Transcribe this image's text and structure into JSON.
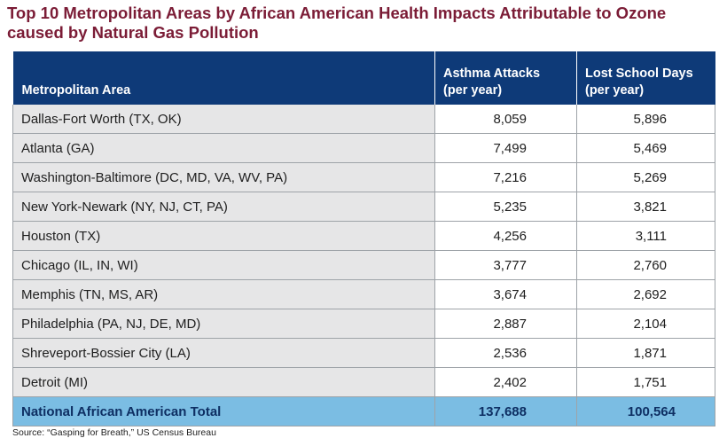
{
  "title": {
    "line1": "Top 10 Metropolitan Areas by African American Health Impacts Attributable to Ozone",
    "line2": "caused by Natural Gas Pollution"
  },
  "table": {
    "headers": {
      "col1": "Metropolitan Area",
      "col2_line1": "Asthma Attacks",
      "col2_line2": "(per year)",
      "col3_line1": "Lost School Days",
      "col3_line2": "(per year)"
    },
    "rows": [
      {
        "area": "Dallas-Fort Worth (TX, OK)",
        "asthma": "8,059",
        "school": "5,896"
      },
      {
        "area": "Atlanta (GA)",
        "asthma": "7,499",
        "school": "5,469"
      },
      {
        "area": "Washington-Baltimore (DC, MD, VA, WV, PA)",
        "asthma": "7,216",
        "school": "5,269"
      },
      {
        "area": "New York-Newark (NY, NJ, CT, PA)",
        "asthma": "5,235",
        "school": "3,821"
      },
      {
        "area": "Houston (TX)",
        "asthma": "4,256",
        "school": "3,111"
      },
      {
        "area": "Chicago (IL, IN, WI)",
        "asthma": "3,777",
        "school": "2,760"
      },
      {
        "area": "Memphis (TN, MS, AR)",
        "asthma": "3,674",
        "school": "2,692"
      },
      {
        "area": "Philadelphia (PA, NJ, DE, MD)",
        "asthma": "2,887",
        "school": "2,104"
      },
      {
        "area": "Shreveport-Bossier City (LA)",
        "asthma": "2,536",
        "school": "1,871"
      },
      {
        "area": "Detroit (MI)",
        "asthma": "2,402",
        "school": "1,751"
      }
    ],
    "total": {
      "label": "National African American Total",
      "asthma": "137,688",
      "school": "100,564"
    }
  },
  "source": "Source: “Gasping for Breath,” US Census Bureau",
  "colors": {
    "title": "#7b1c36",
    "header_bg": "#0e3a78",
    "name_cell_bg": "#e6e6e7",
    "total_row_bg": "#7bbde3",
    "total_row_text": "#0e2f63"
  }
}
